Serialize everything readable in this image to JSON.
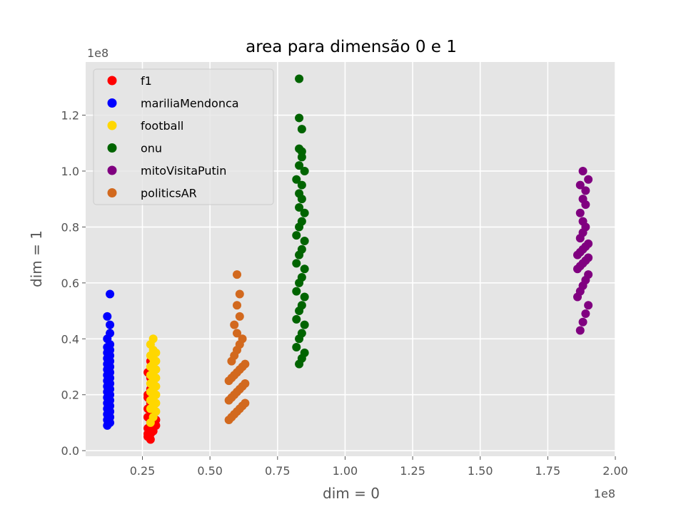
{
  "chart_data": {
    "type": "scatter",
    "title": "area para dimensão 0 e 1",
    "xlabel": "dim = 0",
    "ylabel": "dim = 1",
    "x_offset_label": "1e8",
    "y_offset_label": "1e8",
    "xlim": [
      0.04,
      2.0
    ],
    "ylim": [
      -0.02,
      1.39
    ],
    "x_ticks": [
      0.25,
      0.5,
      0.75,
      1.0,
      1.25,
      1.5,
      1.75,
      2.0
    ],
    "x_tick_labels": [
      "0.25",
      "0.50",
      "0.75",
      "1.00",
      "1.25",
      "1.50",
      "1.75",
      "2.00"
    ],
    "y_ticks": [
      0.0,
      0.2,
      0.4,
      0.6,
      0.8,
      1.0,
      1.2
    ],
    "y_tick_labels": [
      "0.0",
      "0.2",
      "0.4",
      "0.6",
      "0.8",
      "1.0",
      "1.2"
    ],
    "grid": true,
    "legend_position": "top-left",
    "series": [
      {
        "name": "f1",
        "color": "#ff0000",
        "x": [
          0.27,
          0.28,
          0.29,
          0.27,
          0.28,
          0.29,
          0.3,
          0.27,
          0.28,
          0.29,
          0.27,
          0.28,
          0.29,
          0.3,
          0.27,
          0.28,
          0.29,
          0.28,
          0.27,
          0.29,
          0.28,
          0.27,
          0.29,
          0.28,
          0.27,
          0.29,
          0.28,
          0.27,
          0.28,
          0.29,
          0.28
        ],
        "y": [
          0.05,
          0.06,
          0.07,
          0.08,
          0.09,
          0.1,
          0.09,
          0.12,
          0.13,
          0.14,
          0.15,
          0.16,
          0.18,
          0.11,
          0.2,
          0.22,
          0.24,
          0.26,
          0.28,
          0.3,
          0.04,
          0.06,
          0.08,
          0.1,
          0.12,
          0.15,
          0.17,
          0.19,
          0.21,
          0.23,
          0.32
        ]
      },
      {
        "name": "mariliaMendonca",
        "color": "#0000ff",
        "x": [
          0.12,
          0.13,
          0.12,
          0.13,
          0.12,
          0.13,
          0.12,
          0.13,
          0.12,
          0.13,
          0.12,
          0.13,
          0.12,
          0.13,
          0.12,
          0.13,
          0.12,
          0.13,
          0.12,
          0.13,
          0.12,
          0.13,
          0.12,
          0.13,
          0.12,
          0.13,
          0.12,
          0.13,
          0.12,
          0.13,
          0.12,
          0.13,
          0.13,
          0.12,
          0.13
        ],
        "y": [
          0.09,
          0.1,
          0.11,
          0.12,
          0.13,
          0.14,
          0.15,
          0.16,
          0.17,
          0.18,
          0.19,
          0.2,
          0.21,
          0.22,
          0.23,
          0.24,
          0.25,
          0.26,
          0.27,
          0.28,
          0.29,
          0.3,
          0.31,
          0.32,
          0.33,
          0.34,
          0.35,
          0.36,
          0.37,
          0.38,
          0.4,
          0.42,
          0.45,
          0.48,
          0.56
        ]
      },
      {
        "name": "football",
        "color": "#ffd700",
        "x": [
          0.28,
          0.29,
          0.3,
          0.28,
          0.29,
          0.3,
          0.28,
          0.29,
          0.3,
          0.28,
          0.29,
          0.3,
          0.28,
          0.29,
          0.3,
          0.28,
          0.29,
          0.3,
          0.28,
          0.29,
          0.3,
          0.29,
          0.28,
          0.3,
          0.29,
          0.28,
          0.29
        ],
        "y": [
          0.1,
          0.12,
          0.14,
          0.15,
          0.16,
          0.17,
          0.18,
          0.19,
          0.2,
          0.21,
          0.22,
          0.23,
          0.24,
          0.25,
          0.26,
          0.27,
          0.28,
          0.29,
          0.3,
          0.31,
          0.32,
          0.33,
          0.34,
          0.35,
          0.36,
          0.38,
          0.4
        ]
      },
      {
        "name": "onu",
        "color": "#006400",
        "x": [
          0.83,
          0.84,
          0.85,
          0.82,
          0.83,
          0.84,
          0.85,
          0.82,
          0.83,
          0.84,
          0.85,
          0.82,
          0.83,
          0.84,
          0.85,
          0.82,
          0.83,
          0.84,
          0.85,
          0.82,
          0.83,
          0.84,
          0.85,
          0.83,
          0.84,
          0.83,
          0.84,
          0.82,
          0.85,
          0.83,
          0.84,
          0.83,
          0.84,
          0.84,
          0.83,
          0.83
        ],
        "y": [
          0.31,
          0.33,
          0.35,
          0.37,
          0.4,
          0.42,
          0.45,
          0.47,
          0.5,
          0.52,
          0.55,
          0.57,
          0.6,
          0.62,
          0.65,
          0.67,
          0.7,
          0.72,
          0.75,
          0.77,
          0.8,
          0.82,
          0.85,
          0.87,
          0.9,
          0.92,
          0.95,
          0.97,
          1.0,
          1.02,
          1.05,
          1.08,
          1.07,
          1.15,
          1.19,
          1.33
        ]
      },
      {
        "name": "mitoVisitaPutin",
        "color": "#800080",
        "x": [
          1.87,
          1.88,
          1.89,
          1.9,
          1.86,
          1.87,
          1.88,
          1.89,
          1.9,
          1.86,
          1.87,
          1.88,
          1.89,
          1.9,
          1.86,
          1.87,
          1.88,
          1.89,
          1.9,
          1.87,
          1.88,
          1.89,
          1.88,
          1.87,
          1.89,
          1.88,
          1.89,
          1.9,
          1.88,
          1.87
        ],
        "y": [
          0.43,
          0.46,
          0.49,
          0.52,
          0.55,
          0.57,
          0.59,
          0.61,
          0.63,
          0.65,
          0.66,
          0.67,
          0.68,
          0.69,
          0.7,
          0.71,
          0.72,
          0.73,
          0.74,
          0.76,
          0.78,
          0.8,
          0.82,
          0.85,
          0.88,
          0.9,
          0.93,
          0.97,
          1.0,
          0.95
        ]
      },
      {
        "name": "politicsAR",
        "color": "#d2691e",
        "x": [
          0.57,
          0.58,
          0.59,
          0.6,
          0.61,
          0.62,
          0.63,
          0.57,
          0.58,
          0.59,
          0.6,
          0.61,
          0.62,
          0.63,
          0.57,
          0.58,
          0.59,
          0.6,
          0.61,
          0.62,
          0.63,
          0.58,
          0.59,
          0.6,
          0.61,
          0.62,
          0.6,
          0.59,
          0.61,
          0.6,
          0.61,
          0.6
        ],
        "y": [
          0.11,
          0.12,
          0.13,
          0.14,
          0.15,
          0.16,
          0.17,
          0.18,
          0.19,
          0.2,
          0.21,
          0.22,
          0.23,
          0.24,
          0.25,
          0.26,
          0.27,
          0.28,
          0.29,
          0.3,
          0.31,
          0.32,
          0.34,
          0.36,
          0.38,
          0.4,
          0.42,
          0.45,
          0.48,
          0.52,
          0.56,
          0.63
        ]
      }
    ]
  }
}
